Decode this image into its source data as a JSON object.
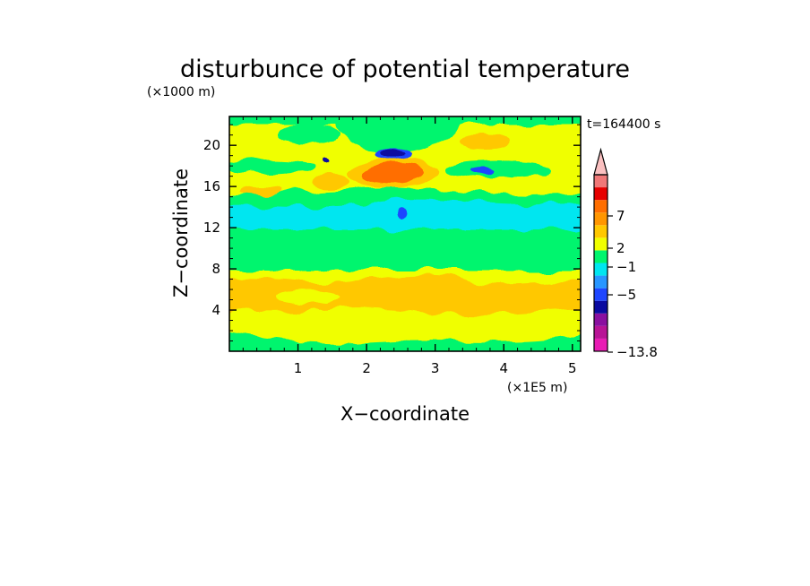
{
  "chart_data": {
    "type": "heatmap",
    "title": "disturbunce of potential temperature",
    "xlabel": "X−coordinate",
    "ylabel": "Z−coordinate",
    "x_unit": "(×1E5 m)",
    "y_unit": "(×1000 m)",
    "time_label": "t=164400 s",
    "xlim": [
      0,
      5.12
    ],
    "ylim": [
      0,
      22.8
    ],
    "x_ticks": [
      1,
      2,
      3,
      4,
      5
    ],
    "x_tick_labels": [
      "1",
      "2",
      "3",
      "4",
      "5"
    ],
    "y_ticks": [
      4,
      8,
      12,
      16,
      20
    ],
    "y_tick_labels": [
      "4",
      "8",
      "12",
      "16",
      "20"
    ],
    "colorbar": {
      "orientation": "vertical",
      "labels": [
        {
          "value": 7,
          "text": "7"
        },
        {
          "value": 2,
          "text": "2"
        },
        {
          "value": -1,
          "text": "−1"
        },
        {
          "value": -5,
          "text": "−5"
        },
        {
          "value": -13.8,
          "text": "−13.8"
        }
      ],
      "levels_colors": [
        {
          "range": "< -7",
          "color": "#e81cb4"
        },
        {
          "range": "-7 to -6",
          "color": "#b81496"
        },
        {
          "range": "-6 to -5",
          "color": "#8a10a0"
        },
        {
          "range": "-5 to -4",
          "color": "#0a0aa0"
        },
        {
          "range": "-4 to -3",
          "color": "#1e46ff"
        },
        {
          "range": "-3 to -2",
          "color": "#2896ff"
        },
        {
          "range": "-2 to -1",
          "color": "#00e6f0"
        },
        {
          "range": "-1 to 0",
          "color": "#00f56e"
        },
        {
          "range": "0 to 1",
          "color": "#f0ff00"
        },
        {
          "range": "1 to 2",
          "color": "#ffc800"
        },
        {
          "range": "2 to 3",
          "color": "#ff9600"
        },
        {
          "range": "3 to 5",
          "color": "#ff6e00"
        },
        {
          "range": "5 to 7",
          "color": "#e60000"
        },
        {
          "range": "7 to 9",
          "color": "#f07878"
        },
        {
          "range": "> 9",
          "color": "#fac0c0"
        }
      ]
    },
    "field_regions": [
      {
        "name": "near-surface band",
        "x": [
          0,
          5.12
        ],
        "z": [
          0,
          1.5
        ],
        "level": "-1 to 0",
        "color": "#00f56e"
      },
      {
        "name": "lower band",
        "x": [
          0,
          5.12
        ],
        "z": [
          1.5,
          8.4
        ],
        "level": "0 to 1",
        "color": "#f0ff00"
      },
      {
        "name": "warm lower patch",
        "x": [
          0,
          5.12
        ],
        "z": [
          3.5,
          7.2
        ],
        "level": "1 to 2",
        "color": "#ffc800"
      },
      {
        "name": "mid band",
        "x": [
          0,
          5.12
        ],
        "z": [
          8.2,
          12.3
        ],
        "level": "-1 to 0",
        "color": "#00f56e"
      },
      {
        "name": "cold band",
        "x": [
          0,
          5.12
        ],
        "z": [
          12.3,
          14.8
        ],
        "level": "-2 to -1",
        "color": "#00e6f0"
      },
      {
        "name": "upper band",
        "x": [
          0,
          5.12
        ],
        "z": [
          14.8,
          22.8
        ],
        "level": "0 to 1",
        "color": "#f0ff00"
      },
      {
        "name": "warm core",
        "x": [
          1.8,
          2.8
        ],
        "z": [
          16.4,
          18.2
        ],
        "level": "3 to 5",
        "color": "#ff6e00"
      },
      {
        "name": "cold core",
        "x": [
          2.1,
          2.5
        ],
        "z": [
          18.9,
          20.2
        ],
        "level": "-5 to -4",
        "color": "#0a0aa0"
      }
    ]
  }
}
